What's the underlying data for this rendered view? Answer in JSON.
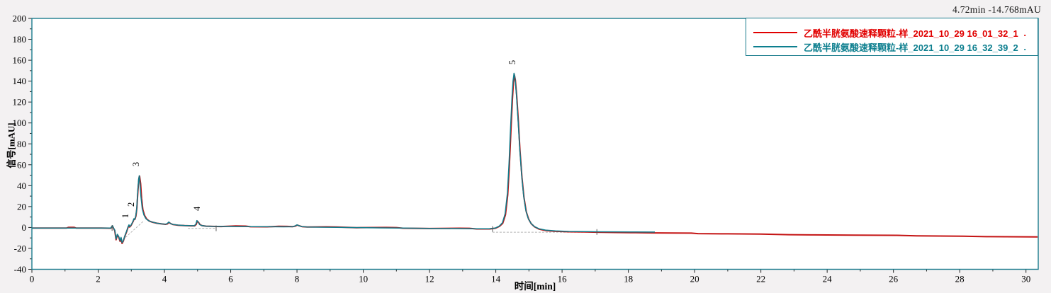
{
  "readout": {
    "text": "4.72min -14.768mAU"
  },
  "legend": {
    "border_color": "#1b7c8d",
    "entries": [
      {
        "label": "乙酰半胱氨酸速释颗粒-样_2021_10_29 16_01_32_1",
        "color": "#e10000",
        "marker": "."
      },
      {
        "label": "乙酰半胱氨酸速释颗粒-样_2021_10_29 16_32_39_2",
        "color": "#0d7f8f",
        "marker": "."
      }
    ]
  },
  "chart_data": {
    "type": "line",
    "title": "",
    "xlabel": "时间[min]",
    "ylabel": "信号[mAU]",
    "xlim": [
      0,
      30.37
    ],
    "ylim": [
      -40,
      200
    ],
    "x_major_ticks": [
      0,
      2,
      4,
      6,
      8,
      10,
      12,
      14,
      16,
      18,
      20,
      22,
      24,
      26,
      28,
      30
    ],
    "x_minor_step": 1,
    "y_major_ticks": [
      -40,
      -20,
      0,
      20,
      40,
      60,
      80,
      100,
      120,
      140,
      160,
      180,
      200
    ],
    "y_minor_step": 10,
    "grid": false,
    "legend_position": "top-right",
    "axis_color": "#1b7c8d",
    "plot_bg": "#ffffff",
    "baseline_color": "#b4b4b4",
    "marker_color": "#5a5a5a",
    "peak_labels": [
      {
        "label": "1",
        "t": 2.91,
        "v": 11
      },
      {
        "label": "2",
        "t": 3.08,
        "v": 22
      },
      {
        "label": "3",
        "t": 3.23,
        "v": 60.5
      },
      {
        "label": "4",
        "t": 5.07,
        "v": 18
      },
      {
        "label": "5",
        "t": 14.59,
        "v": 158
      }
    ],
    "integration_baselines": [
      {
        "t1": 2.67,
        "v1": -13.9,
        "t2": 3.38,
        "v2": 6.4
      },
      {
        "t1": 4.71,
        "v1": -0.9,
        "t2": 5.56,
        "v2": -0.8
      },
      {
        "t1": 13.9,
        "v1": -4.5,
        "t2": 17.05,
        "v2": -4.5
      }
    ],
    "time_markers": [
      {
        "t": 2.42,
        "v": -0.5
      },
      {
        "t": 5.56,
        "v": -0.8
      },
      {
        "t": 13.9,
        "v": -1.5
      },
      {
        "t": 17.05,
        "v": -4.3
      }
    ],
    "series": [
      {
        "name": "乙酰半胱氨酸速释颗粒-样_2021_10_29 16_01_32_1",
        "color": "#c41414",
        "points": [
          [
            0,
            -0.5
          ],
          [
            0.8,
            -0.5
          ],
          [
            1.05,
            -0.5
          ],
          [
            1.1,
            0.1
          ],
          [
            1.28,
            0.1
          ],
          [
            1.33,
            -0.5
          ],
          [
            2.1,
            -0.5
          ],
          [
            2.38,
            -0.7
          ],
          [
            2.43,
            1.5
          ],
          [
            2.47,
            -1.2
          ],
          [
            2.5,
            -3
          ],
          [
            2.54,
            -11.8
          ],
          [
            2.58,
            -7
          ],
          [
            2.62,
            -9.2
          ],
          [
            2.66,
            -13.2
          ],
          [
            2.69,
            -10.2
          ],
          [
            2.72,
            -15.3
          ],
          [
            2.76,
            -13
          ],
          [
            2.81,
            -8
          ],
          [
            2.86,
            -4
          ],
          [
            2.9,
            0
          ],
          [
            2.93,
            2
          ],
          [
            2.95,
            0.4
          ],
          [
            2.99,
            1.8
          ],
          [
            3.03,
            4.2
          ],
          [
            3.06,
            6.2
          ],
          [
            3.08,
            8
          ],
          [
            3.11,
            7.8
          ],
          [
            3.14,
            11
          ],
          [
            3.17,
            19
          ],
          [
            3.2,
            35
          ],
          [
            3.23,
            47
          ],
          [
            3.25,
            49
          ],
          [
            3.28,
            42
          ],
          [
            3.31,
            28
          ],
          [
            3.35,
            17
          ],
          [
            3.4,
            11.5
          ],
          [
            3.46,
            8.2
          ],
          [
            3.54,
            6.2
          ],
          [
            3.64,
            5
          ],
          [
            3.78,
            4
          ],
          [
            3.94,
            3.3
          ],
          [
            4.03,
            3
          ],
          [
            4.09,
            3.4
          ],
          [
            4.14,
            4.8
          ],
          [
            4.19,
            3.7
          ],
          [
            4.26,
            2.8
          ],
          [
            4.41,
            2.2
          ],
          [
            4.61,
            1.8
          ],
          [
            4.81,
            1.6
          ],
          [
            4.91,
            1.6
          ],
          [
            4.96,
            3
          ],
          [
            4.99,
            6.2
          ],
          [
            5.03,
            4.8
          ],
          [
            5.07,
            2.8
          ],
          [
            5.13,
            1.8
          ],
          [
            5.26,
            1.2
          ],
          [
            5.46,
            1
          ],
          [
            5.71,
            0.9
          ],
          [
            6.15,
            1.4
          ],
          [
            6.45,
            1.3
          ],
          [
            6.6,
            0.7
          ],
          [
            7.1,
            0.6
          ],
          [
            7.45,
            1.1
          ],
          [
            7.7,
            1
          ],
          [
            7.88,
            0.8
          ],
          [
            7.95,
            1.3
          ],
          [
            8.01,
            2.3
          ],
          [
            8.07,
            1.6
          ],
          [
            8.15,
            0.8
          ],
          [
            8.31,
            0.4
          ],
          [
            8.9,
            0.6
          ],
          [
            9.2,
            0.5
          ],
          [
            9.8,
            -0.2
          ],
          [
            10.7,
            0
          ],
          [
            11,
            -0.1
          ],
          [
            11.2,
            -0.7
          ],
          [
            12,
            -1
          ],
          [
            12.9,
            -0.7
          ],
          [
            13.2,
            -0.8
          ],
          [
            13.42,
            -1.4
          ],
          [
            13.82,
            -1.4
          ],
          [
            13.99,
            -0.7
          ],
          [
            14.11,
            1
          ],
          [
            14.21,
            4
          ],
          [
            14.29,
            12
          ],
          [
            14.36,
            31
          ],
          [
            14.41,
            60
          ],
          [
            14.46,
            95
          ],
          [
            14.5,
            122
          ],
          [
            14.53,
            138
          ],
          [
            14.56,
            146
          ],
          [
            14.59,
            141
          ],
          [
            14.63,
            126
          ],
          [
            14.68,
            102
          ],
          [
            14.73,
            74
          ],
          [
            14.79,
            48
          ],
          [
            14.85,
            29
          ],
          [
            14.92,
            15
          ],
          [
            14.99,
            8
          ],
          [
            15.07,
            3.6
          ],
          [
            15.17,
            0.6
          ],
          [
            15.31,
            -1.6
          ],
          [
            15.51,
            -3
          ],
          [
            15.81,
            -3.7
          ],
          [
            16.21,
            -4.1
          ],
          [
            16.71,
            -4.3
          ],
          [
            17.06,
            -4.5
          ],
          [
            17.61,
            -4.8
          ],
          [
            18.21,
            -5
          ],
          [
            18.8,
            -5.2
          ],
          [
            19.3,
            -5.3
          ],
          [
            19.9,
            -5.4
          ],
          [
            20.1,
            -5.9
          ],
          [
            21,
            -6.1
          ],
          [
            22,
            -6.3
          ],
          [
            22.85,
            -6.9
          ],
          [
            23.6,
            -7.1
          ],
          [
            24.8,
            -7.3
          ],
          [
            26.1,
            -7.5
          ],
          [
            26.7,
            -8
          ],
          [
            28.1,
            -8.3
          ],
          [
            28.8,
            -8.8
          ],
          [
            30.35,
            -9
          ]
        ]
      },
      {
        "name": "乙酰半胱氨酸速释颗粒-样_2021_10_29 16_32_39_2",
        "color": "#0f7c8c",
        "points": [
          [
            0,
            -0.5
          ],
          [
            0.8,
            -0.5
          ],
          [
            1.6,
            -0.5
          ],
          [
            2.1,
            -0.5
          ],
          [
            2.38,
            -0.6
          ],
          [
            2.43,
            1.8
          ],
          [
            2.47,
            -0.8
          ],
          [
            2.5,
            -2.5
          ],
          [
            2.54,
            -11
          ],
          [
            2.58,
            -6.5
          ],
          [
            2.62,
            -8.5
          ],
          [
            2.66,
            -12.5
          ],
          [
            2.69,
            -9.5
          ],
          [
            2.72,
            -14.5
          ],
          [
            2.76,
            -12.5
          ],
          [
            2.81,
            -7.5
          ],
          [
            2.86,
            -3.5
          ],
          [
            2.9,
            0.5
          ],
          [
            2.93,
            2.5
          ],
          [
            2.95,
            0.8
          ],
          [
            2.99,
            2.2
          ],
          [
            3.03,
            4.6
          ],
          [
            3.06,
            6.6
          ],
          [
            3.08,
            8.4
          ],
          [
            3.1,
            7.6
          ],
          [
            3.13,
            10
          ],
          [
            3.16,
            17
          ],
          [
            3.19,
            33
          ],
          [
            3.22,
            46
          ],
          [
            3.24,
            49.5
          ],
          [
            3.26,
            44
          ],
          [
            3.29,
            30
          ],
          [
            3.33,
            18
          ],
          [
            3.38,
            12
          ],
          [
            3.44,
            8.5
          ],
          [
            3.52,
            6.5
          ],
          [
            3.62,
            5.2
          ],
          [
            3.76,
            4.2
          ],
          [
            3.92,
            3.4
          ],
          [
            4.02,
            3.1
          ],
          [
            4.08,
            3.6
          ],
          [
            4.13,
            5.2
          ],
          [
            4.18,
            3.9
          ],
          [
            4.25,
            2.9
          ],
          [
            4.4,
            2.3
          ],
          [
            4.6,
            1.9
          ],
          [
            4.8,
            1.7
          ],
          [
            4.9,
            1.7
          ],
          [
            4.95,
            3.2
          ],
          [
            4.98,
            6.6
          ],
          [
            5.02,
            5
          ],
          [
            5.06,
            2.9
          ],
          [
            5.12,
            1.9
          ],
          [
            5.25,
            1.3
          ],
          [
            5.45,
            1.1
          ],
          [
            5.7,
            1
          ],
          [
            6.1,
            0.9
          ],
          [
            6.6,
            0.8
          ],
          [
            7.1,
            0.7
          ],
          [
            7.6,
            0.6
          ],
          [
            7.86,
            0.7
          ],
          [
            7.94,
            1.4
          ],
          [
            8,
            2.5
          ],
          [
            8.06,
            1.7
          ],
          [
            8.14,
            0.9
          ],
          [
            8.3,
            0.5
          ],
          [
            8.7,
            0.3
          ],
          [
            9.2,
            0.1
          ],
          [
            9.8,
            -0.1
          ],
          [
            10.5,
            -0.4
          ],
          [
            11.2,
            -0.6
          ],
          [
            12,
            -0.9
          ],
          [
            12.8,
            -1.1
          ],
          [
            13.4,
            -1.3
          ],
          [
            13.8,
            -1.3
          ],
          [
            13.98,
            -0.6
          ],
          [
            14.1,
            1.2
          ],
          [
            14.2,
            4.5
          ],
          [
            14.28,
            13
          ],
          [
            14.35,
            33
          ],
          [
            14.4,
            62
          ],
          [
            14.45,
            98
          ],
          [
            14.49,
            125
          ],
          [
            14.52,
            140
          ],
          [
            14.55,
            147.5
          ],
          [
            14.58,
            143
          ],
          [
            14.62,
            128
          ],
          [
            14.67,
            104
          ],
          [
            14.72,
            76
          ],
          [
            14.78,
            50
          ],
          [
            14.84,
            30
          ],
          [
            14.91,
            16
          ],
          [
            14.98,
            8.5
          ],
          [
            15.06,
            4
          ],
          [
            15.16,
            1
          ],
          [
            15.3,
            -1.2
          ],
          [
            15.5,
            -2.5
          ],
          [
            15.8,
            -3.3
          ],
          [
            16.2,
            -3.8
          ],
          [
            16.7,
            -4
          ],
          [
            17.05,
            -4.1
          ],
          [
            17.6,
            -4.2
          ],
          [
            18.2,
            -4.3
          ],
          [
            18.8,
            -4.4
          ]
        ]
      }
    ]
  }
}
